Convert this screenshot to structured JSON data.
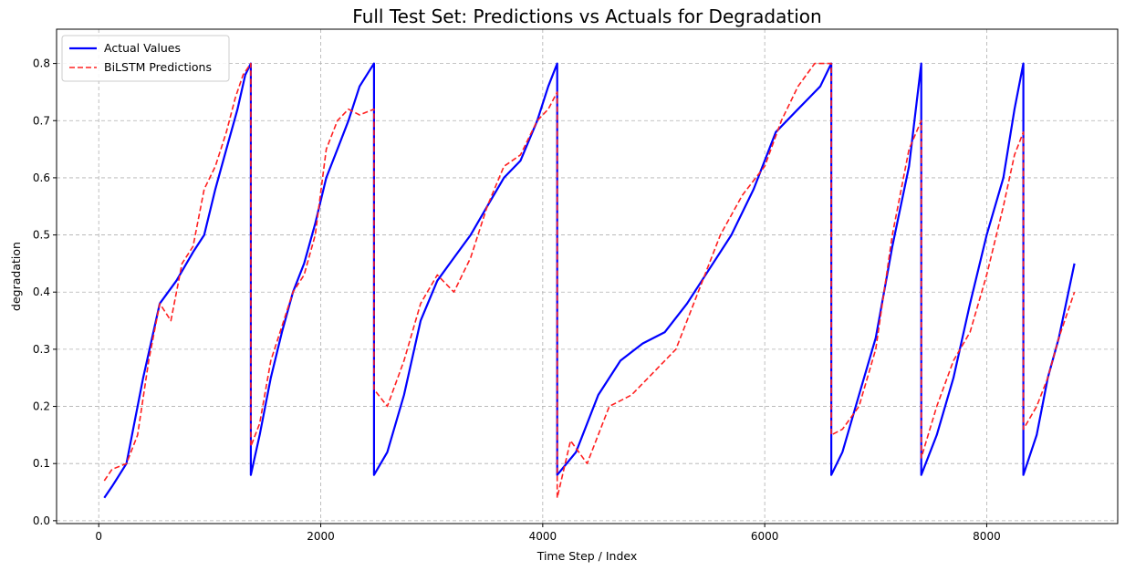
{
  "chart_data": {
    "type": "line",
    "title": "Full Test Set: Predictions vs Actuals for Degradation",
    "xlabel": "Time Step / Index",
    "ylabel": "degradation",
    "xlim": [
      -380,
      9180
    ],
    "ylim": [
      -0.005,
      0.86
    ],
    "xticks": [
      0,
      2000,
      4000,
      6000,
      8000
    ],
    "xtick_labels": [
      "0",
      "2000",
      "4000",
      "6000",
      "8000"
    ],
    "yticks": [
      0.0,
      0.1,
      0.2,
      0.3,
      0.4,
      0.5,
      0.6,
      0.7,
      0.8
    ],
    "ytick_labels": [
      "0.0",
      "0.1",
      "0.2",
      "0.3",
      "0.4",
      "0.5",
      "0.6",
      "0.7",
      "0.8"
    ],
    "grid": true,
    "legend_position": "upper-left",
    "series": [
      {
        "name": "Actual Values",
        "color": "#0000ff",
        "style": "solid",
        "x": [
          50,
          120,
          250,
          400,
          550,
          700,
          850,
          950,
          1050,
          1150,
          1250,
          1320,
          1370,
          1370,
          1450,
          1550,
          1650,
          1750,
          1850,
          1950,
          2050,
          2150,
          2250,
          2350,
          2480,
          2480,
          2600,
          2750,
          2900,
          3050,
          3200,
          3350,
          3500,
          3650,
          3800,
          3950,
          4050,
          4130,
          4130,
          4300,
          4500,
          4700,
          4900,
          5100,
          5300,
          5500,
          5700,
          5900,
          6100,
          6300,
          6500,
          6600,
          6600,
          6700,
          6850,
          7000,
          7150,
          7300,
          7410,
          7410,
          7550,
          7700,
          7850,
          8000,
          8150,
          8250,
          8330,
          8330,
          8450,
          8550,
          8650,
          8790
        ],
        "values": [
          0.04,
          0.06,
          0.1,
          0.25,
          0.38,
          0.42,
          0.47,
          0.5,
          0.58,
          0.65,
          0.72,
          0.78,
          0.8,
          0.08,
          0.15,
          0.25,
          0.33,
          0.4,
          0.45,
          0.52,
          0.6,
          0.65,
          0.7,
          0.76,
          0.8,
          0.08,
          0.12,
          0.22,
          0.35,
          0.42,
          0.46,
          0.5,
          0.55,
          0.6,
          0.63,
          0.7,
          0.76,
          0.8,
          0.08,
          0.12,
          0.22,
          0.28,
          0.31,
          0.33,
          0.38,
          0.44,
          0.5,
          0.58,
          0.68,
          0.72,
          0.76,
          0.8,
          0.08,
          0.12,
          0.22,
          0.32,
          0.48,
          0.62,
          0.8,
          0.08,
          0.15,
          0.25,
          0.38,
          0.5,
          0.6,
          0.72,
          0.8,
          0.08,
          0.15,
          0.25,
          0.32,
          0.45
        ]
      },
      {
        "name": "BiLSTM Predictions",
        "color": "#ff2020",
        "style": "dashed",
        "x": [
          50,
          120,
          250,
          350,
          450,
          550,
          650,
          750,
          850,
          950,
          1050,
          1150,
          1230,
          1300,
          1370,
          1370,
          1450,
          1550,
          1650,
          1750,
          1850,
          1950,
          2050,
          2150,
          2250,
          2350,
          2480,
          2480,
          2600,
          2750,
          2900,
          3050,
          3200,
          3350,
          3500,
          3650,
          3800,
          3950,
          4050,
          4130,
          4130,
          4250,
          4400,
          4600,
          4800,
          5000,
          5200,
          5400,
          5600,
          5800,
          6000,
          6150,
          6300,
          6450,
          6600,
          6600,
          6700,
          6850,
          7000,
          7150,
          7300,
          7410,
          7410,
          7550,
          7700,
          7850,
          8000,
          8150,
          8250,
          8330,
          8330,
          8450,
          8550,
          8650,
          8790
        ],
        "values": [
          0.07,
          0.09,
          0.1,
          0.15,
          0.28,
          0.38,
          0.35,
          0.45,
          0.48,
          0.58,
          0.62,
          0.68,
          0.74,
          0.78,
          0.8,
          0.13,
          0.17,
          0.28,
          0.34,
          0.4,
          0.43,
          0.5,
          0.65,
          0.7,
          0.72,
          0.71,
          0.72,
          0.23,
          0.2,
          0.28,
          0.38,
          0.43,
          0.4,
          0.46,
          0.55,
          0.62,
          0.64,
          0.7,
          0.72,
          0.75,
          0.04,
          0.14,
          0.1,
          0.2,
          0.22,
          0.26,
          0.3,
          0.4,
          0.5,
          0.57,
          0.62,
          0.7,
          0.76,
          0.8,
          0.8,
          0.15,
          0.16,
          0.2,
          0.3,
          0.5,
          0.65,
          0.7,
          0.11,
          0.2,
          0.28,
          0.33,
          0.43,
          0.55,
          0.64,
          0.68,
          0.16,
          0.2,
          0.25,
          0.32,
          0.4
        ]
      }
    ]
  }
}
